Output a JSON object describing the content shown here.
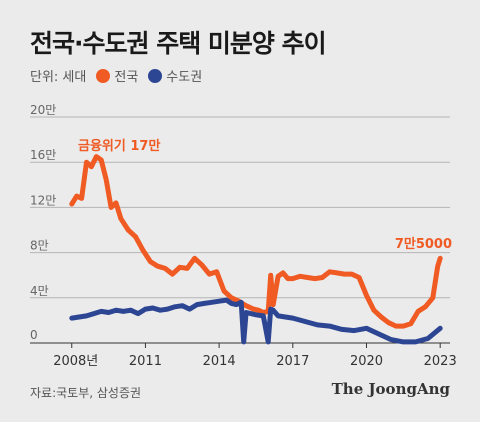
{
  "title": "전국·수도권 주택 미분양 추이",
  "legend": {
    "unit": "단위: 세대",
    "items": [
      "전국",
      "수도권"
    ]
  },
  "source": "자료:국토부, 삼성증권",
  "brand": "The JoongAng",
  "colors": {
    "national": "#f05a23",
    "capital": "#2d4694",
    "grid": "#b5b5b5",
    "axis": "#333333"
  },
  "chart_data": {
    "type": "line",
    "ylim": [
      0,
      20
    ],
    "yticks": [
      {
        "value": 0,
        "label": "0"
      },
      {
        "value": 4,
        "label": "4만"
      },
      {
        "value": 8,
        "label": "8만"
      },
      {
        "value": 12,
        "label": "12만"
      },
      {
        "value": 16,
        "label": "16만"
      },
      {
        "value": 20,
        "label": "20만"
      }
    ],
    "xlim": [
      2006.3,
      2023.4
    ],
    "xticks": [
      {
        "value": 2008,
        "label": "2008년"
      },
      {
        "value": 2011,
        "label": "2011"
      },
      {
        "value": 2014,
        "label": "2014"
      },
      {
        "value": 2017,
        "label": "2017"
      },
      {
        "value": 2020,
        "label": "2020"
      },
      {
        "value": 2023,
        "label": "2023"
      }
    ],
    "series": [
      {
        "name": "전국",
        "x": [
          2008.0,
          2008.2,
          2008.4,
          2008.6,
          2008.8,
          2009.0,
          2009.2,
          2009.4,
          2009.6,
          2009.8,
          2010.0,
          2010.3,
          2010.6,
          2010.9,
          2011.2,
          2011.5,
          2011.8,
          2012.1,
          2012.4,
          2012.7,
          2013.0,
          2013.3,
          2013.6,
          2013.9,
          2014.2,
          2014.5,
          2014.8,
          2015.1,
          2015.4,
          2015.6,
          2015.8,
          2016.0,
          2016.1,
          2016.2,
          2016.4,
          2016.6,
          2016.8,
          2017.0,
          2017.3,
          2017.6,
          2017.9,
          2018.2,
          2018.5,
          2018.8,
          2019.1,
          2019.4,
          2019.7,
          2020.0,
          2020.3,
          2020.6,
          2020.9,
          2021.2,
          2021.5,
          2021.8,
          2022.1,
          2022.4,
          2022.7,
          2022.9,
          2023.0
        ],
        "values": [
          12.3,
          13.0,
          12.8,
          16.0,
          15.6,
          16.5,
          16.2,
          14.5,
          12.0,
          12.4,
          11.0,
          10.0,
          9.4,
          8.2,
          7.2,
          6.8,
          6.6,
          6.1,
          6.7,
          6.6,
          7.5,
          6.9,
          6.1,
          6.3,
          4.6,
          4.0,
          3.7,
          3.3,
          3.0,
          2.9,
          2.7,
          2.8,
          6.0,
          3.4,
          5.9,
          6.2,
          5.7,
          5.7,
          5.9,
          5.8,
          5.7,
          5.8,
          6.3,
          6.2,
          6.1,
          6.1,
          5.8,
          4.2,
          2.9,
          2.3,
          1.8,
          1.5,
          1.5,
          1.7,
          2.8,
          3.2,
          4.0,
          6.8,
          7.5
        ]
      },
      {
        "name": "수도권",
        "x": [
          2008.0,
          2008.3,
          2008.6,
          2008.9,
          2009.2,
          2009.5,
          2009.8,
          2010.1,
          2010.4,
          2010.7,
          2011.0,
          2011.3,
          2011.6,
          2011.9,
          2012.2,
          2012.5,
          2012.8,
          2013.1,
          2013.4,
          2013.7,
          2014.0,
          2014.3,
          2014.5,
          2014.7,
          2014.9,
          2015.0,
          2015.1,
          2015.5,
          2015.8,
          2016.0,
          2016.1,
          2016.2,
          2016.4,
          2016.7,
          2017.0,
          2017.5,
          2018.0,
          2018.5,
          2019.0,
          2019.5,
          2020.0,
          2020.5,
          2021.0,
          2021.5,
          2022.0,
          2022.5,
          2023.0
        ],
        "values": [
          2.2,
          2.3,
          2.4,
          2.6,
          2.8,
          2.7,
          2.9,
          2.8,
          2.9,
          2.6,
          3.0,
          3.1,
          2.9,
          3.0,
          3.2,
          3.3,
          3.0,
          3.4,
          3.5,
          3.6,
          3.7,
          3.8,
          3.5,
          3.4,
          3.6,
          0.1,
          2.7,
          2.5,
          2.4,
          0.1,
          3.0,
          2.9,
          2.4,
          2.3,
          2.2,
          1.9,
          1.6,
          1.5,
          1.2,
          1.1,
          1.3,
          0.8,
          0.3,
          0.1,
          0.1,
          0.4,
          1.3
        ]
      }
    ],
    "annotations": [
      {
        "text": "금융위기 17만",
        "series": "전국"
      },
      {
        "text": "7만5000",
        "series": "전국"
      }
    ]
  }
}
